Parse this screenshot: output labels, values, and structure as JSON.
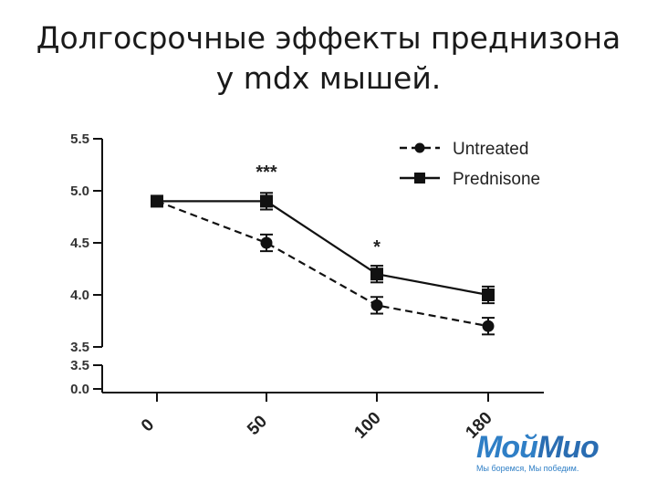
{
  "title": {
    "line1": "Долгосрочные эффекты преднизона",
    "line2": "у mdx мышей."
  },
  "chart_data": {
    "type": "line",
    "x": [
      0,
      50,
      100,
      180
    ],
    "x_tick_labels": [
      "0",
      "50",
      "100",
      "180"
    ],
    "y_tick_labels": [
      "5.5",
      "5.0",
      "4.5",
      "4.0",
      "3.5",
      "3.5",
      "0.0"
    ],
    "ylim": [
      3.5,
      5.5
    ],
    "axis_break": true,
    "grid": false,
    "legend_position": "top-right",
    "series": [
      {
        "name": "Untreated",
        "style": "dashed",
        "marker": "circle",
        "values": [
          4.9,
          4.5,
          3.9,
          3.7
        ],
        "errors": [
          0.0,
          0.08,
          0.08,
          0.08
        ]
      },
      {
        "name": "Prednisone",
        "style": "solid",
        "marker": "square",
        "values": [
          4.9,
          4.9,
          4.2,
          4.0
        ],
        "errors": [
          0.0,
          0.08,
          0.08,
          0.08
        ]
      }
    ],
    "annotations": [
      {
        "x": 50,
        "text": "***"
      },
      {
        "x": 100,
        "text": "*"
      }
    ]
  },
  "logo": {
    "word_a": "Мой",
    "word_b": "Мио",
    "tagline": "Мы боремся, Мы победим."
  }
}
